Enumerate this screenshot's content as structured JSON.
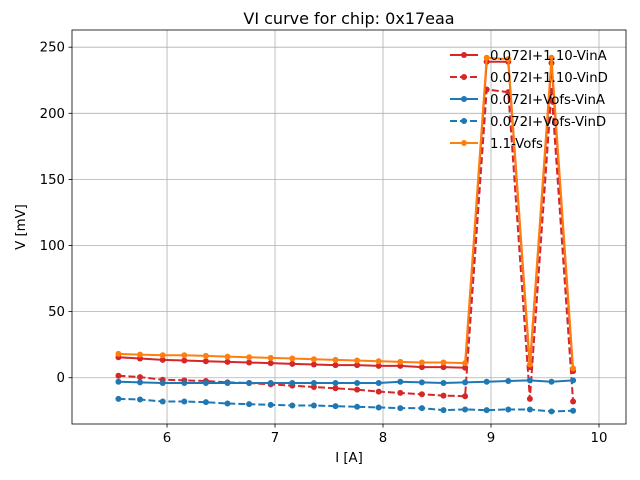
{
  "chart_data": {
    "type": "line",
    "title": "VI curve for chip: 0x17eaa",
    "xlabel": "I [A]",
    "ylabel": "V [mV]",
    "xlim": [
      5.12,
      10.25
    ],
    "ylim": [
      -35,
      263
    ],
    "xticks": [
      6,
      7,
      8,
      9,
      10
    ],
    "yticks": [
      0,
      50,
      100,
      150,
      200,
      250
    ],
    "grid": true,
    "legend_position": "top-right",
    "x": [
      5.55,
      5.75,
      5.96,
      6.16,
      6.36,
      6.56,
      6.76,
      6.96,
      7.16,
      7.36,
      7.56,
      7.76,
      7.96,
      8.16,
      8.36,
      8.56,
      8.76,
      8.96,
      9.16,
      9.36,
      9.56,
      9.76
    ],
    "series": [
      {
        "name": "0.072I+1.10-VinA",
        "color": "#d62728",
        "linestyle": "solid",
        "values": [
          15.5,
          14.5,
          13.5,
          13,
          12.5,
          12,
          11.5,
          11,
          10.5,
          10,
          9.5,
          9.5,
          9,
          9,
          8,
          8,
          7.5,
          239,
          239,
          8,
          238,
          5
        ]
      },
      {
        "name": "0.072I+1.10-VinD",
        "color": "#d62728",
        "linestyle": "dashed",
        "values": [
          1.5,
          0.5,
          -1.5,
          -2,
          -2.5,
          -3.5,
          -4,
          -5,
          -6,
          -7,
          -8,
          -9,
          -10.5,
          -11.5,
          -12.5,
          -13.5,
          -14,
          218,
          216,
          -16,
          217,
          -18
        ]
      },
      {
        "name": "0.072I+Vofs-VinA",
        "color": "#1f77b4",
        "linestyle": "solid",
        "values": [
          -3,
          -3.5,
          -4,
          -4,
          -4,
          -4,
          -4,
          -4,
          -4,
          -4,
          -4,
          -4,
          -4,
          -3,
          -3.5,
          -4,
          -3.5,
          -3,
          -2.5,
          -2,
          -3,
          -2
        ]
      },
      {
        "name": "0.072I+Vofs-VinD",
        "color": "#1f77b4",
        "linestyle": "dashed",
        "values": [
          -16,
          -16.5,
          -18,
          -18,
          -18.5,
          -19.5,
          -20,
          -20.5,
          -21,
          -21,
          -21.5,
          -22,
          -22.5,
          -23,
          -23,
          -24.5,
          -24,
          -24.5,
          -24,
          -24,
          -25.5,
          -25
        ]
      },
      {
        "name": "1.1-Vofs",
        "color": "#ff7f0e",
        "linestyle": "solid",
        "values": [
          18,
          17.5,
          17,
          17,
          16.5,
          16,
          15.5,
          15,
          14.5,
          14,
          13.5,
          13,
          12.5,
          12,
          11.5,
          11.5,
          11,
          242,
          241,
          10,
          242,
          7
        ]
      }
    ]
  }
}
